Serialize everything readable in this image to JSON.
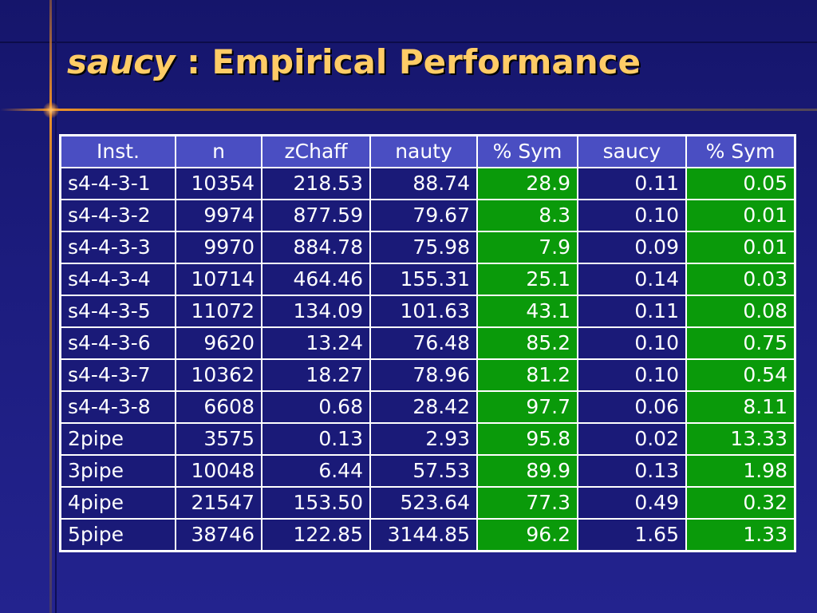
{
  "slide": {
    "title_emph": "saucy",
    "title_rest": " : Empirical Performance"
  },
  "table": {
    "headers": [
      "Inst.",
      "n",
      "zChaff",
      "nauty",
      "% Sym",
      "saucy",
      "% Sym"
    ],
    "rows": [
      [
        "s4-4-3-1",
        "10354",
        "218.53",
        "88.74",
        "28.9",
        "0.11",
        "0.05"
      ],
      [
        "s4-4-3-2",
        "9974",
        "877.59",
        "79.67",
        "8.3",
        "0.10",
        "0.01"
      ],
      [
        "s4-4-3-3",
        "9970",
        "884.78",
        "75.98",
        "7.9",
        "0.09",
        "0.01"
      ],
      [
        "s4-4-3-4",
        "10714",
        "464.46",
        "155.31",
        "25.1",
        "0.14",
        "0.03"
      ],
      [
        "s4-4-3-5",
        "11072",
        "134.09",
        "101.63",
        "43.1",
        "0.11",
        "0.08"
      ],
      [
        "s4-4-3-6",
        "9620",
        "13.24",
        "76.48",
        "85.2",
        "0.10",
        "0.75"
      ],
      [
        "s4-4-3-7",
        "10362",
        "18.27",
        "78.96",
        "81.2",
        "0.10",
        "0.54"
      ],
      [
        "s4-4-3-8",
        "6608",
        "0.68",
        "28.42",
        "97.7",
        "0.06",
        "8.11"
      ],
      [
        "2pipe",
        "3575",
        "0.13",
        "2.93",
        "95.8",
        "0.02",
        "13.33"
      ],
      [
        "3pipe",
        "10048",
        "6.44",
        "57.53",
        "89.9",
        "0.13",
        "1.98"
      ],
      [
        "4pipe",
        "21547",
        "153.50",
        "523.64",
        "77.3",
        "0.49",
        "0.32"
      ],
      [
        "5pipe",
        "38746",
        "122.85",
        "3144.85",
        "96.2",
        "1.65",
        "1.33"
      ]
    ]
  },
  "colors": {
    "background": "#1c1c7e",
    "title": "#ffcc66",
    "header_cell": "#4a4ec2",
    "body_cell": "#1a1a78",
    "sym_cell": "#0a9a0a",
    "accent_line": "#e8902a"
  }
}
